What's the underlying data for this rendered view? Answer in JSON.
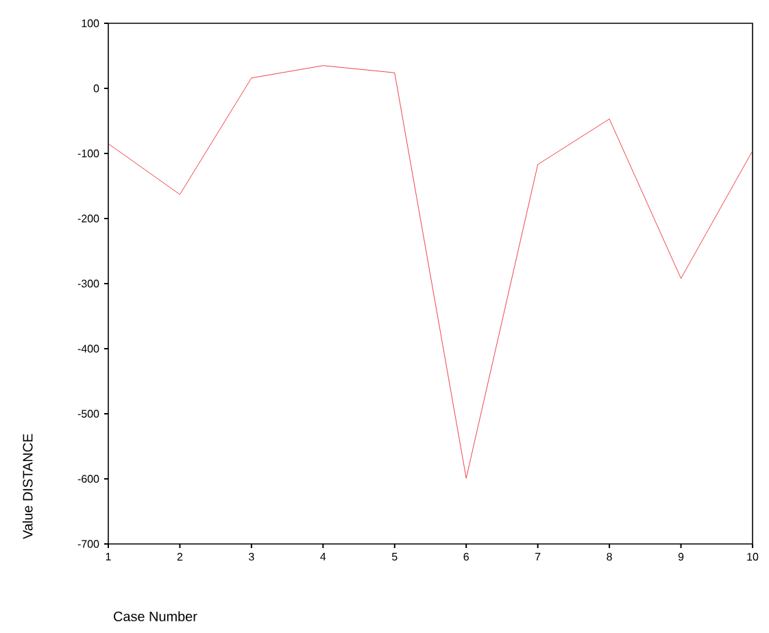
{
  "chart_data": {
    "type": "line",
    "xlabel": "Case Number",
    "ylabel": "Value DISTANCE",
    "x": [
      1,
      2,
      3,
      4,
      5,
      6,
      7,
      8,
      9,
      10
    ],
    "series": [
      {
        "color": "#e8141c",
        "values": [
          -85,
          -163,
          16,
          35,
          24,
          -599,
          -117,
          -47,
          -292,
          -96
        ]
      }
    ],
    "xlim": [
      1,
      10
    ],
    "ylim": [
      -700,
      100
    ],
    "xticks": [
      1,
      2,
      3,
      4,
      5,
      6,
      7,
      8,
      9,
      10
    ],
    "yticks": [
      -700,
      -600,
      -500,
      -400,
      -300,
      -200,
      -100,
      0,
      100
    ],
    "grid": false,
    "marker": "none",
    "line_style": "solid"
  }
}
